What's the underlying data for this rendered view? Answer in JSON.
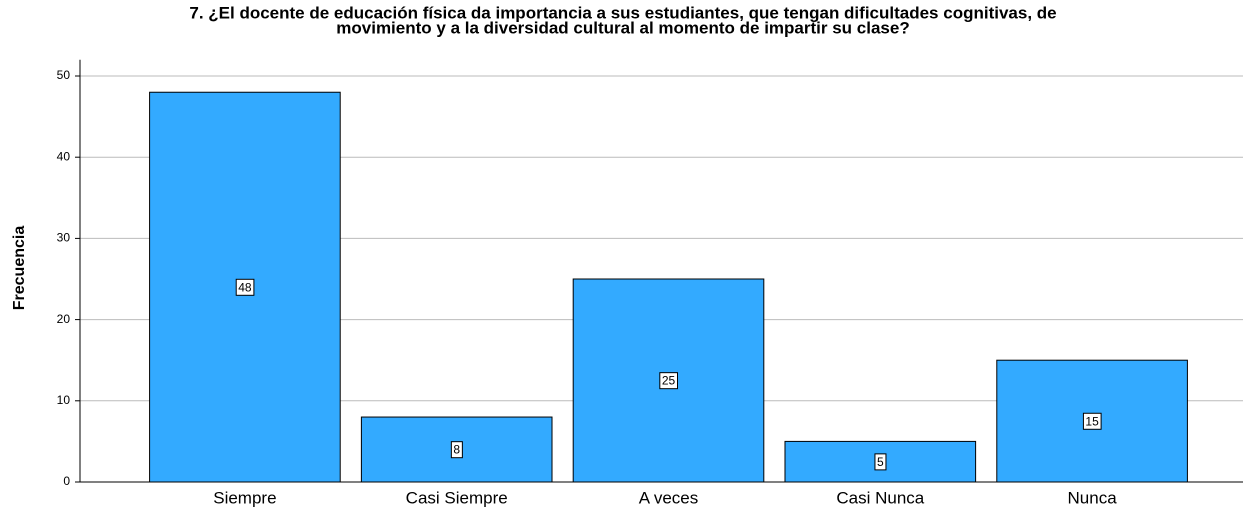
{
  "chart_data": {
    "type": "bar",
    "title": [
      "7. ¿El docente de educación física da importancia a sus estudiantes, que tengan dificultades cognitivas, de",
      "movimiento y a la diversidad cultural al momento de impartir su clase?"
    ],
    "y_label": "Frecuencia",
    "categories": [
      "Siempre",
      "Casi Siempre",
      "A veces",
      "Casi Nunca",
      "Nunca"
    ],
    "values": [
      48,
      8,
      25,
      5,
      15
    ],
    "color": "#33aaff",
    "ylim": [
      0,
      52
    ],
    "yticks": [
      0,
      10,
      20,
      30,
      40,
      50
    ],
    "grid": true
  }
}
